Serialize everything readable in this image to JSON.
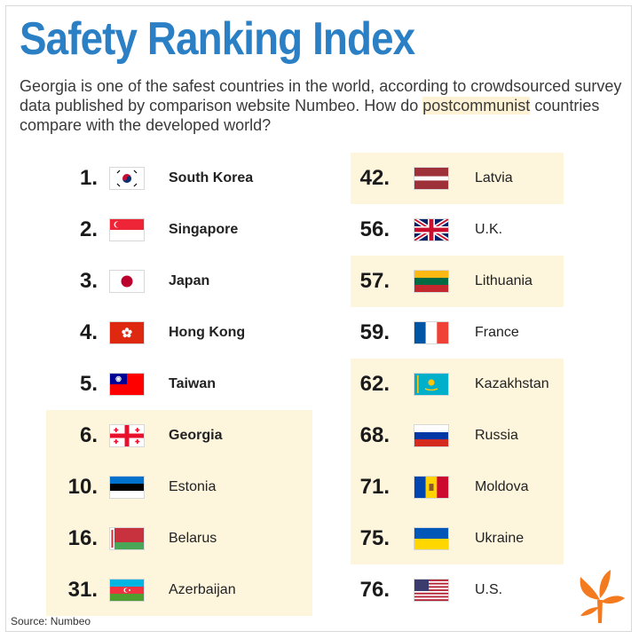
{
  "header": {
    "title": "Safety Ranking Index",
    "subtitle_pre": "Georgia is one of the safest countries in the world, according to crowdsourced survey data published by comparison website Numbeo. How do ",
    "subtitle_highlight": "postcommunist",
    "subtitle_post": " countries compare with the developed world?"
  },
  "left_column": [
    {
      "rank": "1.",
      "country": "South Korea",
      "flag": "south-korea"
    },
    {
      "rank": "2.",
      "country": "Singapore",
      "flag": "singapore"
    },
    {
      "rank": "3.",
      "country": "Japan",
      "flag": "japan"
    },
    {
      "rank": "4.",
      "country": "Hong Kong",
      "flag": "hong-kong"
    },
    {
      "rank": "5.",
      "country": "Taiwan",
      "flag": "taiwan"
    },
    {
      "rank": "6.",
      "country": "Georgia",
      "flag": "georgia"
    },
    {
      "rank": "10.",
      "country": "Estonia",
      "flag": "estonia"
    },
    {
      "rank": "16.",
      "country": "Belarus",
      "flag": "belarus"
    },
    {
      "rank": "31.",
      "country": "Azerbaijan",
      "flag": "azerbaijan"
    }
  ],
  "right_column": [
    {
      "rank": "42.",
      "country": "Latvia",
      "flag": "latvia"
    },
    {
      "rank": "56.",
      "country": "U.K.",
      "flag": "uk"
    },
    {
      "rank": "57.",
      "country": "Lithuania",
      "flag": "lithuania"
    },
    {
      "rank": "59.",
      "country": "France",
      "flag": "france"
    },
    {
      "rank": "62.",
      "country": "Kazakhstan",
      "flag": "kazakhstan"
    },
    {
      "rank": "68.",
      "country": "Russia",
      "flag": "russia"
    },
    {
      "rank": "71.",
      "country": "Moldova",
      "flag": "moldova"
    },
    {
      "rank": "75.",
      "country": "Ukraine",
      "flag": "ukraine"
    },
    {
      "rank": "76.",
      "country": "U.S.",
      "flag": "usa"
    }
  ],
  "footer": {
    "source": "Source: Numbeo"
  },
  "colors": {
    "title": "#2b7fc4",
    "highlight": "#fdf6dd",
    "logo": "#f47a20"
  }
}
